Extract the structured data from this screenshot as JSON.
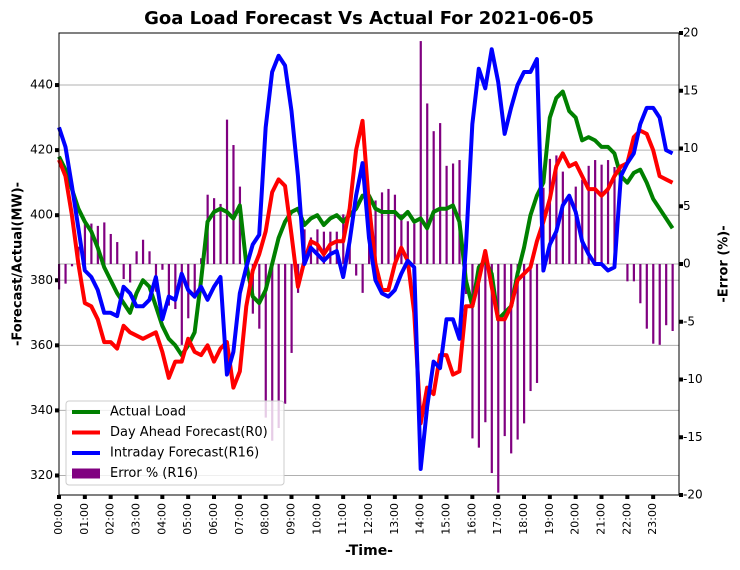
{
  "chart_data": {
    "type": "line",
    "title": "Goa Load Forecast Vs Actual For 2021-06-05",
    "x_label": "-Time-",
    "y_label": "-Forecast/Actual(MW)-",
    "y2_label": "-Error (%)-",
    "categories": [
      "00:00",
      null,
      null,
      null,
      "01:00",
      null,
      null,
      null,
      "02:00",
      null,
      null,
      null,
      "03:00",
      null,
      null,
      null,
      "04:00",
      null,
      null,
      null,
      "05:00",
      null,
      null,
      null,
      "06:00",
      null,
      null,
      null,
      "07:00",
      null,
      null,
      null,
      "08:00",
      null,
      null,
      null,
      "09:00",
      null,
      null,
      null,
      "10:00",
      null,
      null,
      null,
      "11:00",
      null,
      null,
      null,
      "12:00",
      null,
      null,
      null,
      "13:00",
      null,
      null,
      null,
      "14:00",
      null,
      null,
      null,
      "15:00",
      null,
      null,
      null,
      "16:00",
      null,
      null,
      null,
      "17:00",
      null,
      null,
      null,
      "18:00",
      null,
      null,
      null,
      "19:00",
      null,
      null,
      null,
      "20:00",
      null,
      null,
      null,
      "21:00",
      null,
      null,
      null,
      "22:00",
      null,
      null,
      null,
      "23:00",
      null,
      null,
      null
    ],
    "ylim": [
      314,
      456
    ],
    "yticks": [
      320,
      340,
      360,
      380,
      400,
      420,
      440
    ],
    "y2lim": [
      -20,
      20
    ],
    "y2ticks": [
      -20,
      -15,
      -10,
      -5,
      0,
      5,
      10,
      15,
      20
    ],
    "grid": true,
    "legend": "lower left",
    "series": [
      {
        "name": "Actual Load",
        "color": "#008000",
        "values": [
          418,
          414,
          408,
          402,
          398,
          395,
          390,
          384,
          380,
          376,
          373,
          370,
          376,
          380,
          378,
          372,
          366,
          362,
          360,
          357,
          360,
          364,
          380,
          398,
          401,
          402,
          401,
          399,
          403,
          385,
          375,
          373,
          377,
          385,
          393,
          398,
          401,
          402,
          397,
          399,
          400,
          397,
          399,
          400,
          398,
          400,
          402,
          406,
          406,
          402,
          401,
          401,
          401,
          399,
          401,
          398,
          399,
          396,
          401,
          402,
          402,
          403,
          398,
          380,
          372,
          384,
          386,
          382,
          368,
          370,
          372,
          382,
          390,
          400,
          406,
          410,
          430,
          436,
          438,
          432,
          430,
          423,
          424,
          423,
          421,
          421,
          419,
          412,
          410,
          413,
          414,
          410,
          405,
          402,
          399,
          396
        ]
      },
      {
        "name": "Day Ahead Forecast(R0)",
        "color": "#ff0000",
        "values": [
          417,
          412,
          400,
          385,
          373,
          372,
          368,
          361,
          361,
          359,
          366,
          364,
          363,
          362,
          363,
          364,
          358,
          350,
          355,
          355,
          362,
          358,
          357,
          360,
          355,
          359,
          361,
          347,
          352,
          372,
          383,
          388,
          395,
          407,
          411,
          409,
          394,
          378,
          386,
          392,
          391,
          388,
          391,
          392,
          392,
          402,
          420,
          429,
          403,
          385,
          377,
          377,
          385,
          390,
          386,
          370,
          336,
          347,
          345,
          357,
          357,
          351,
          352,
          372,
          372,
          380,
          389,
          378,
          368,
          368,
          372,
          380,
          382,
          384,
          392,
          398,
          405,
          415,
          419,
          415,
          416,
          412,
          408,
          408,
          406,
          408,
          412,
          415,
          416,
          424,
          426,
          425,
          420,
          412,
          411,
          410
        ]
      },
      {
        "name": "Intraday Forecast(R16)",
        "color": "#0000ff",
        "values": [
          427,
          421,
          409,
          396,
          383,
          381,
          377,
          370,
          370,
          369,
          378,
          376,
          372,
          372,
          374,
          381,
          368,
          375,
          374,
          382,
          377,
          375,
          378,
          374,
          378,
          381,
          351,
          358,
          376,
          384,
          391,
          394,
          427,
          444,
          449,
          446,
          432,
          412,
          385,
          390,
          388,
          386,
          388,
          389,
          381,
          392,
          406,
          416,
          393,
          380,
          376,
          375,
          377,
          382,
          386,
          384,
          322,
          341,
          355,
          353,
          368,
          368,
          362,
          390,
          428,
          445,
          439,
          451,
          441,
          425,
          433,
          440,
          444,
          444,
          448,
          383,
          391,
          395,
          403,
          406,
          401,
          392,
          388,
          385,
          385,
          383,
          384,
          412,
          416,
          419,
          428,
          433,
          433,
          430,
          420,
          419
        ]
      },
      {
        "name": "Error % (R16)",
        "color": "#800080",
        "type": "bar",
        "axis": "y2",
        "values": [
          -2.2,
          -1.7,
          -0.2,
          1.5,
          3.8,
          3.5,
          3.3,
          3.6,
          2.6,
          1.9,
          -1.3,
          -1.6,
          1.1,
          2.1,
          1.1,
          -2.4,
          -0.5,
          -3.6,
          -3.9,
          -7.0,
          -4.7,
          -3.0,
          0.5,
          6.0,
          5.7,
          5.2,
          12.5,
          10.3,
          6.7,
          0.3,
          -4.3,
          -5.6,
          -13.3,
          -15.3,
          -14.2,
          -12.1,
          -7.7,
          -2.5,
          3.0,
          2.3,
          3.0,
          2.8,
          2.8,
          2.8,
          4.3,
          2.0,
          -1.0,
          -2.5,
          3.2,
          5.5,
          6.2,
          6.5,
          6.0,
          4.3,
          3.7,
          3.5,
          19.3,
          13.9,
          11.5,
          12.2,
          8.5,
          8.7,
          9.0,
          -2.6,
          -15.1,
          -15.9,
          -13.7,
          -18.1,
          -19.8,
          -14.9,
          -16.4,
          -15.2,
          -13.8,
          -11.0,
          -10.3,
          6.6,
          9.1,
          9.4,
          8.0,
          6.0,
          6.7,
          7.3,
          8.5,
          9.0,
          8.6,
          9.0,
          8.4,
          0,
          -1.5,
          -1.5,
          -3.4,
          -5.6,
          -6.9,
          -7.0,
          -5.3,
          -5.8
        ]
      }
    ]
  }
}
